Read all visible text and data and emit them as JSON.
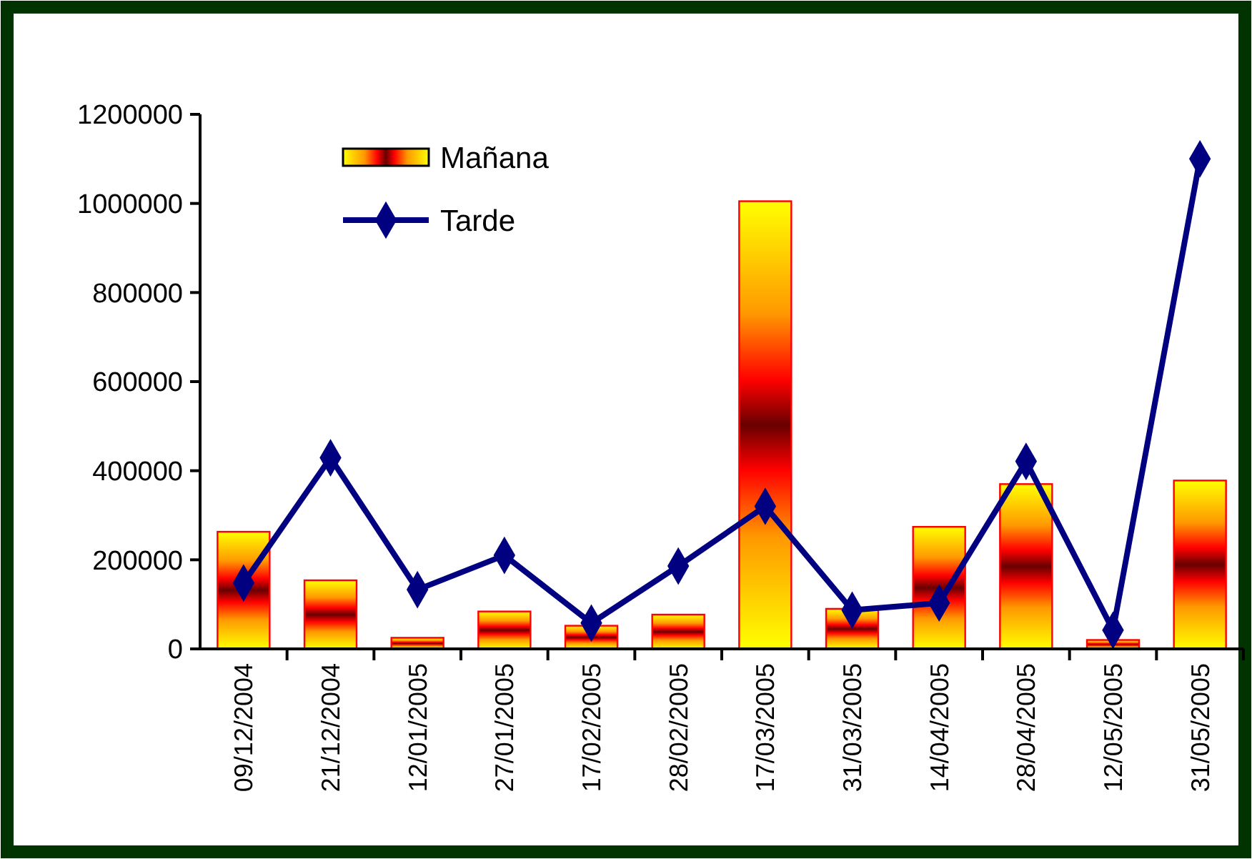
{
  "chart_data": {
    "type": "bar",
    "categories": [
      "09/12/2004",
      "21/12/2004",
      "12/01/2005",
      "27/01/2005",
      "17/02/2005",
      "28/02/2005",
      "17/03/2005",
      "31/03/2005",
      "14/04/2005",
      "28/04/2005",
      "12/05/2005",
      "31/05/2005"
    ],
    "series": [
      {
        "name": "Mañana",
        "color": "#ff0000",
        "values": [
          263000,
          154000,
          25000,
          84000,
          52000,
          77000,
          1005000,
          90000,
          274000,
          370000,
          20000,
          378000
        ]
      },
      {
        "name": "Tarde",
        "type": "line",
        "color": "#000080",
        "marker": "diamond",
        "values": [
          148000,
          429000,
          133000,
          210000,
          58000,
          186000,
          320000,
          87000,
          103000,
          421000,
          42000,
          1100000
        ]
      }
    ],
    "ylim": [
      0,
      1200000
    ],
    "yticks": [
      0,
      200000,
      400000,
      600000,
      800000,
      1000000,
      1200000
    ],
    "legend": "top left"
  }
}
